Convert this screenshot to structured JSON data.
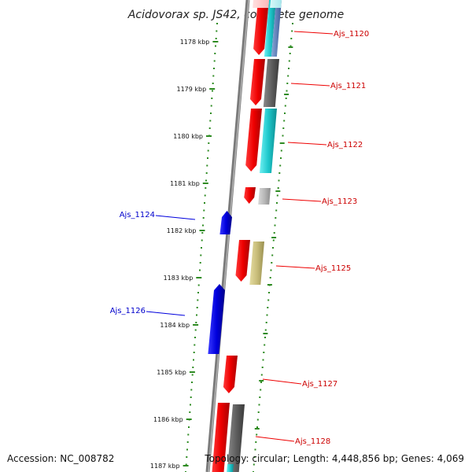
{
  "title": "Acidovorax sp. JS42, complete genome",
  "kbp_ticks": [
    "1178 kbp",
    "1179 kbp",
    "1180 kbp",
    "1181 kbp",
    "1182 kbp",
    "1183 kbp",
    "1184 kbp",
    "1185 kbp",
    "1186 kbp",
    "1187 kbp"
  ],
  "forward_genes": [
    {
      "label": "Ajs_1120",
      "color": "#ee0000"
    },
    {
      "label": "Ajs_1121",
      "color": "#ee0000"
    },
    {
      "label": "Ajs_1122",
      "color": "#ee0000"
    },
    {
      "label": "Ajs_1123",
      "color": "#ee0000"
    },
    {
      "label": "Ajs_1125",
      "color": "#ee0000"
    },
    {
      "label": "Ajs_1127",
      "color": "#ee0000"
    },
    {
      "label": "Ajs_1128",
      "color": "#ee0000"
    }
  ],
  "reverse_genes": [
    {
      "label": "Ajs_1124",
      "color": "#0000dd"
    },
    {
      "label": "Ajs_1126",
      "color": "#0000dd"
    }
  ],
  "colors": {
    "forward": "#ee0000",
    "reverse": "#0000dd",
    "forward_label": "#cc0000",
    "reverse_label": "#0000cc",
    "ticks": "#2e8b22",
    "backbone": "#888888",
    "cyan": "#1ec8cc",
    "gray": "#606060",
    "light_gray": "#b8b8b8",
    "khaki": "#c8bd7a"
  },
  "footer": {
    "accession": "Accession: NC_008782",
    "topology": "Topology: circular; Length: 4,448,856 bp; Genes: 4,069"
  }
}
